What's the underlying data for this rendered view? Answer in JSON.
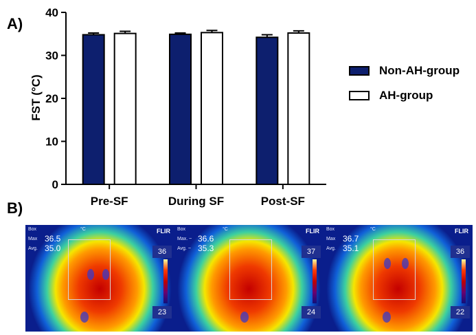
{
  "panel_a_label": "A)",
  "panel_b_label": "B)",
  "chart_data": {
    "type": "bar",
    "categories": [
      "Pre-SF",
      "During SF",
      "Post-SF"
    ],
    "series": [
      {
        "name": "Non-AH-group",
        "values": [
          34.8,
          34.9,
          34.2
        ],
        "errors": [
          0.4,
          0.3,
          0.6
        ],
        "color": "#0d1f6e"
      },
      {
        "name": "AH-group",
        "values": [
          35.1,
          35.3,
          35.2
        ],
        "errors": [
          0.5,
          0.5,
          0.5
        ],
        "color": "#ffffff"
      }
    ],
    "ylabel": "FST (°C)",
    "xlabel": "",
    "ylim": [
      0,
      40
    ],
    "yticks": [
      0,
      10,
      20,
      30,
      40
    ],
    "legend_position": "right"
  },
  "thermal_images": [
    {
      "box_label": "Box",
      "max_label": "Max",
      "avg_label": "Avg.",
      "max_value": "36.5",
      "avg_value": "35.0",
      "scale_max": "36",
      "scale_min": "23",
      "brand": "FLIR",
      "unit": "°C"
    },
    {
      "box_label": "Box",
      "max_label": "Max. ~",
      "avg_label": "Avg. ~",
      "max_value": "36.6",
      "avg_value": "35.3",
      "scale_max": "37",
      "scale_min": "24",
      "brand": "FLIR",
      "unit": "°C"
    },
    {
      "box_label": "Box",
      "max_label": "Max",
      "avg_label": "Avg.",
      "max_value": "36.7",
      "avg_value": "35.1",
      "scale_max": "36",
      "scale_min": "22",
      "brand": "FLIR",
      "unit": "°C"
    }
  ]
}
